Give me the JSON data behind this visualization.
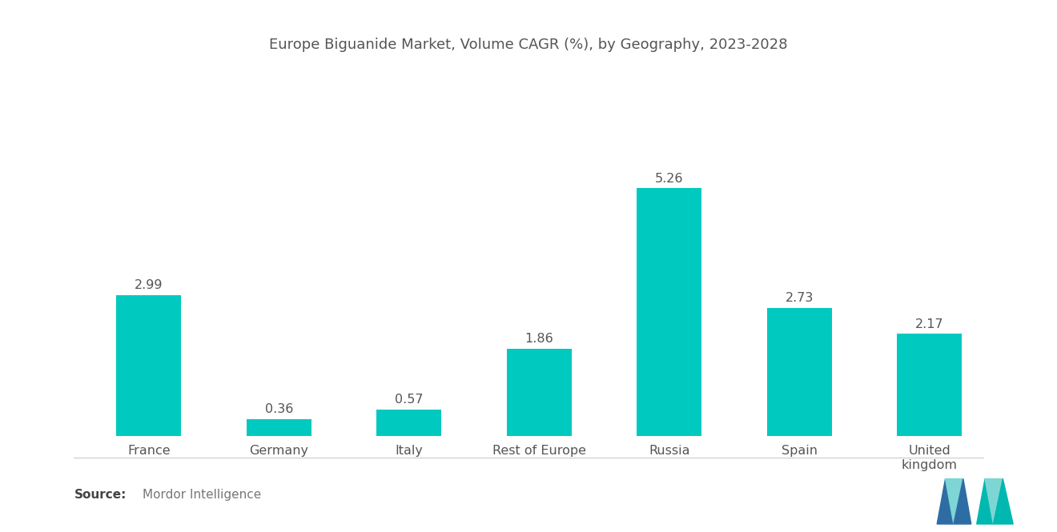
{
  "title": "Europe Biguanide Market, Volume CAGR (%), by Geography, 2023-2028",
  "categories": [
    "France",
    "Germany",
    "Italy",
    "Rest of Europe",
    "Russia",
    "Spain",
    "United\nkingdom"
  ],
  "values": [
    2.99,
    0.36,
    0.57,
    1.86,
    5.26,
    2.73,
    2.17
  ],
  "bar_color": "#00C9C0",
  "background_color": "#ffffff",
  "title_fontsize": 13,
  "label_fontsize": 11.5,
  "value_fontsize": 11.5,
  "source_bold": "Source:",
  "source_detail": "Mordor Intelligence",
  "ylim": [
    0,
    7.0
  ],
  "bar_width": 0.5,
  "title_color": "#555555",
  "label_color": "#555555",
  "value_color": "#555555",
  "source_color": "#777777",
  "logo_blue": "#2E6DA4",
  "logo_teal": "#00B8B0",
  "logo_light_teal": "#7DD6D4"
}
